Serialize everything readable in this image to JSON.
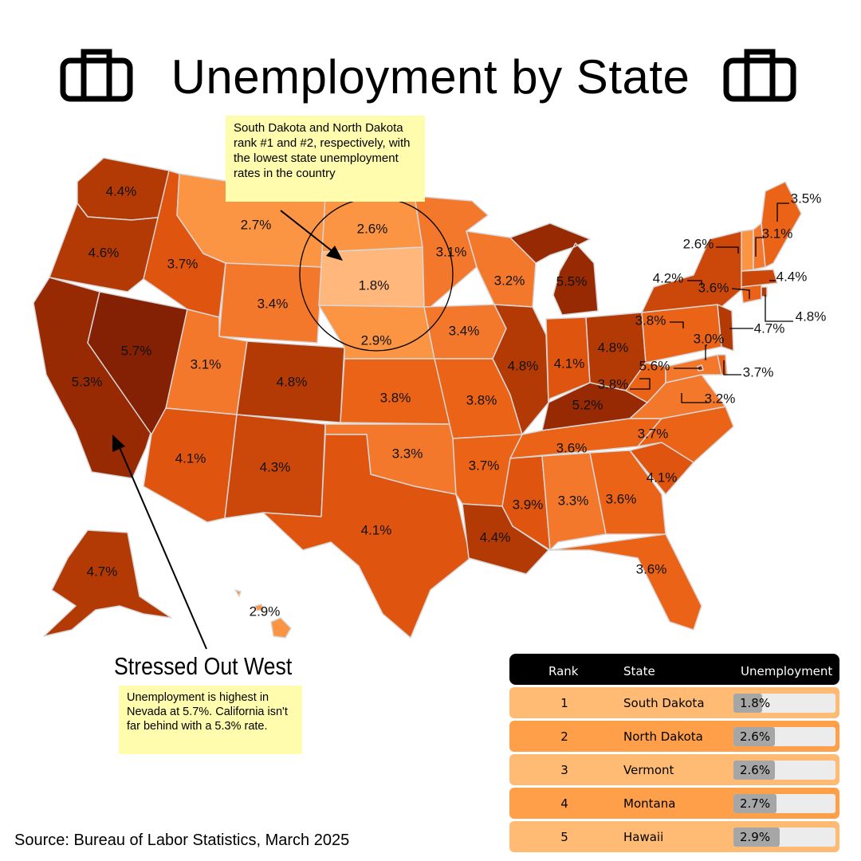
{
  "title": "Unemployment by State",
  "icons": {
    "left": "briefcase-icon",
    "right": "briefcase-icon"
  },
  "annotations": {
    "dakotas": "South Dakota and North Dakota rank #1 and #2, respectively, with the lowest state unemployment rates in the country",
    "west_heading": "Stressed Out West",
    "west_note": "Unemployment is highest in Nevada at 5.7%. California isn't far behind with a 5.3% rate."
  },
  "source": "Source: Bureau of Labor Statistics, March 2025",
  "colors": {
    "scale": [
      "#ffb77c",
      "#fb9443",
      "#f4782b",
      "#ea6316",
      "#df540e",
      "#cc470a",
      "#b33a04",
      "#972a03",
      "#842004"
    ],
    "background": "#ffffff",
    "note": "#fffcad",
    "row_odd": "#ffbb73",
    "row_even": "#ff9f4a"
  },
  "states": [
    {
      "state": "Washington",
      "rate": "4.4%"
    },
    {
      "state": "Oregon",
      "rate": "4.6%"
    },
    {
      "state": "California",
      "rate": "5.3%"
    },
    {
      "state": "Nevada",
      "rate": "5.7%"
    },
    {
      "state": "Idaho",
      "rate": "3.7%"
    },
    {
      "state": "Montana",
      "rate": "2.7%"
    },
    {
      "state": "Wyoming",
      "rate": "3.4%"
    },
    {
      "state": "Utah",
      "rate": "3.1%"
    },
    {
      "state": "Arizona",
      "rate": "4.1%"
    },
    {
      "state": "Colorado",
      "rate": "4.8%"
    },
    {
      "state": "New Mexico",
      "rate": "4.3%"
    },
    {
      "state": "North Dakota",
      "rate": "2.6%"
    },
    {
      "state": "South Dakota",
      "rate": "1.8%"
    },
    {
      "state": "Nebraska",
      "rate": "2.9%"
    },
    {
      "state": "Kansas",
      "rate": "3.8%"
    },
    {
      "state": "Oklahoma",
      "rate": "3.3%"
    },
    {
      "state": "Texas",
      "rate": "4.1%"
    },
    {
      "state": "Minnesota",
      "rate": "3.1%"
    },
    {
      "state": "Iowa",
      "rate": "3.4%"
    },
    {
      "state": "Missouri",
      "rate": "3.8%"
    },
    {
      "state": "Arkansas",
      "rate": "3.7%"
    },
    {
      "state": "Louisiana",
      "rate": "4.4%"
    },
    {
      "state": "Wisconsin",
      "rate": "3.2%"
    },
    {
      "state": "Illinois",
      "rate": "4.8%"
    },
    {
      "state": "Michigan",
      "rate": "5.5%"
    },
    {
      "state": "Indiana",
      "rate": "4.1%"
    },
    {
      "state": "Ohio",
      "rate": "4.8%"
    },
    {
      "state": "Kentucky",
      "rate": "5.2%"
    },
    {
      "state": "Tennessee",
      "rate": "3.6%"
    },
    {
      "state": "Mississippi",
      "rate": "3.9%"
    },
    {
      "state": "Alabama",
      "rate": "3.3%"
    },
    {
      "state": "Georgia",
      "rate": "3.6%"
    },
    {
      "state": "Florida",
      "rate": "3.6%"
    },
    {
      "state": "South Carolina",
      "rate": "4.1%"
    },
    {
      "state": "North Carolina",
      "rate": "3.7%"
    },
    {
      "state": "Virginia",
      "rate": "3.2%"
    },
    {
      "state": "West Virginia",
      "rate": "3.8%"
    },
    {
      "state": "Pennsylvania",
      "rate": "3.8%"
    },
    {
      "state": "New York",
      "rate": "4.2%"
    },
    {
      "state": "Maryland",
      "rate": "3.0%"
    },
    {
      "state": "Delaware",
      "rate": "3.7%"
    },
    {
      "state": "District of Columbia",
      "rate": "5.6%"
    },
    {
      "state": "New Jersey",
      "rate": "4.7%"
    },
    {
      "state": "Connecticut",
      "rate": "3.6%"
    },
    {
      "state": "Rhode Island",
      "rate": "4.8%"
    },
    {
      "state": "Massachusetts",
      "rate": "4.4%"
    },
    {
      "state": "Vermont",
      "rate": "2.6%"
    },
    {
      "state": "New Hampshire",
      "rate": "3.1%"
    },
    {
      "state": "Maine",
      "rate": "3.5%"
    },
    {
      "state": "Alaska",
      "rate": "4.7%"
    },
    {
      "state": "Hawaii",
      "rate": "2.9%"
    }
  ],
  "table": {
    "headers": [
      "Rank",
      "State",
      "Unemployment"
    ],
    "rows": [
      {
        "rank": "1",
        "state": "South Dakota",
        "rate": "1.8%",
        "value": 1.8
      },
      {
        "rank": "2",
        "state": "North Dakota",
        "rate": "2.6%",
        "value": 2.6
      },
      {
        "rank": "3",
        "state": "Vermont",
        "rate": "2.6%",
        "value": 2.6
      },
      {
        "rank": "4",
        "state": "Montana",
        "rate": "2.7%",
        "value": 2.7
      },
      {
        "rank": "5",
        "state": "Hawaii",
        "rate": "2.9%",
        "value": 2.9
      }
    ],
    "bar_max": 6.4
  }
}
